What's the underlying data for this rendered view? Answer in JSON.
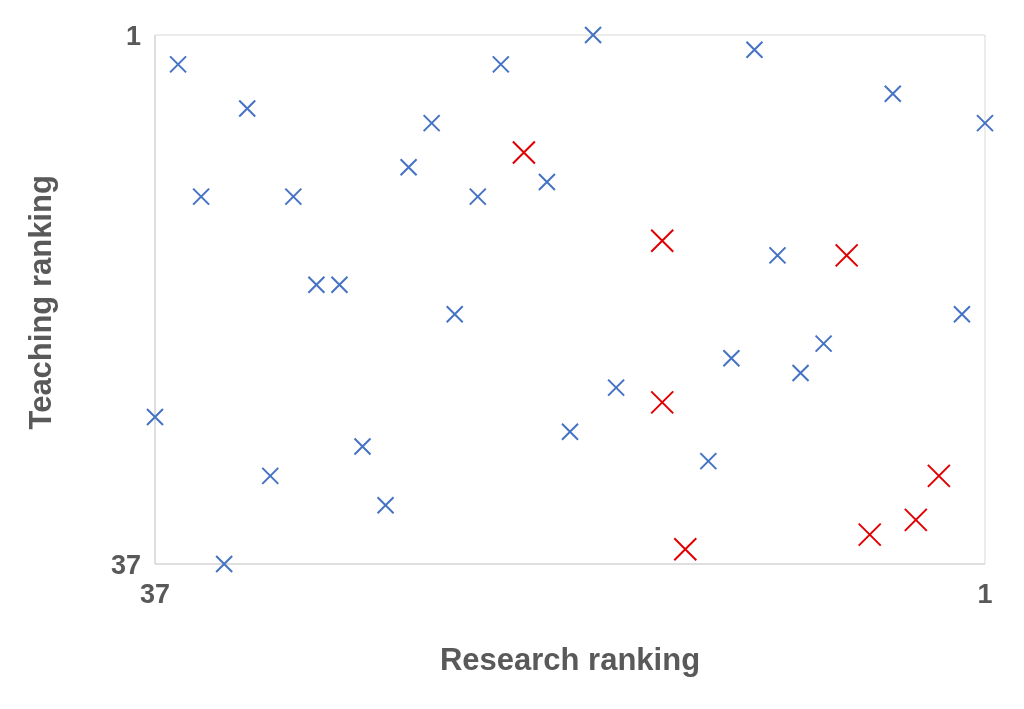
{
  "chart_data": {
    "type": "scatter",
    "xlabel": "Research ranking",
    "ylabel": "Teaching ranking",
    "xlim": [
      37,
      1
    ],
    "ylim": [
      37,
      1
    ],
    "xticks": [
      37,
      1
    ],
    "yticks": [
      1,
      37
    ],
    "grid": false,
    "marker": "cross",
    "series": [
      {
        "color": "#4472c4",
        "x": [
          37,
          36,
          35,
          34,
          33,
          32,
          31,
          30,
          29,
          28,
          27,
          26,
          25,
          24,
          23,
          22,
          20,
          19,
          18,
          17,
          13,
          12,
          11,
          10,
          9,
          8,
          5,
          2,
          1
        ],
        "values": [
          27,
          3,
          12,
          37,
          6,
          31,
          12,
          18,
          18,
          29,
          33,
          10,
          7,
          20,
          12,
          3,
          11,
          28,
          1,
          25,
          30,
          23,
          2,
          16,
          24,
          22,
          5,
          20,
          7
        ]
      },
      {
        "color": "#e00000",
        "x": [
          21,
          15,
          15,
          14,
          7,
          6,
          4,
          3
        ],
        "values": [
          9,
          15,
          26,
          36,
          16,
          35,
          34,
          31
        ]
      }
    ]
  }
}
